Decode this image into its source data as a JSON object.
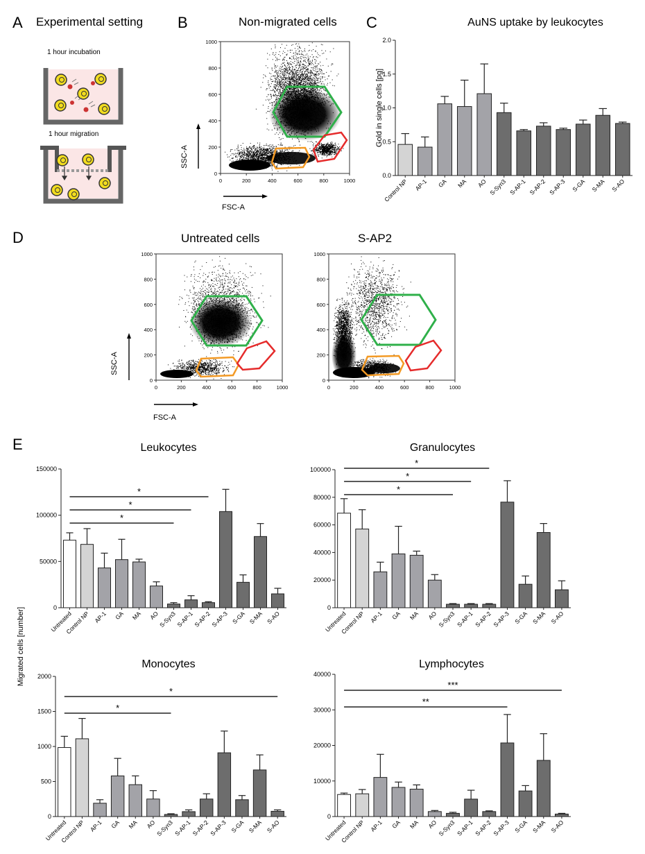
{
  "panels": {
    "A": {
      "letter": "A",
      "title": "Experimental setting",
      "step1": "1 hour incubation",
      "step2": "1 hour migration"
    },
    "B": {
      "letter": "B",
      "title": "Non-migrated cells",
      "xlabel": "FSC-A",
      "ylabel": "SSC-A",
      "ticks": [
        "0",
        "200",
        "400",
        "600",
        "800",
        "1000"
      ]
    },
    "C": {
      "letter": "C"
    },
    "D": {
      "letter": "D",
      "left_title": "Untreated cells",
      "right_title": "S-AP2",
      "xlabel": "FSC-A",
      "ylabel": "SSC-A",
      "ticks": [
        "0",
        "200",
        "400",
        "600",
        "800",
        "1000"
      ]
    },
    "E": {
      "letter": "E",
      "shared_ylabel": "Migrated cells [number]"
    }
  },
  "colors": {
    "gate_green": "#2fb04a",
    "gate_orange": "#f39a25",
    "gate_red": "#e52b2b",
    "bar_white": "#ffffff",
    "bar_light": "#d4d4d4",
    "bar_mid": "#a3a3a8",
    "bar_dark": "#6d6d6d"
  },
  "chart_data": [
    {
      "id": "C",
      "type": "bar",
      "title": "AuNS uptake by leukocytes",
      "ylabel": "Gold in single cells [pg]",
      "ylim": [
        0,
        2.0
      ],
      "yticks": [
        "0.0",
        "0.5",
        "1.0",
        "1.5",
        "2.0"
      ],
      "categories": [
        "Control NP",
        "AP-1",
        "GA",
        "MA",
        "AO",
        "S-Syn3",
        "S-AP-1",
        "S-AP-2",
        "S-AP-3",
        "S-GA",
        "S-MA",
        "S-AO"
      ],
      "values": [
        0.46,
        0.42,
        1.06,
        1.02,
        1.21,
        0.93,
        0.66,
        0.73,
        0.68,
        0.76,
        0.89,
        0.77
      ],
      "errors": [
        0.16,
        0.15,
        0.11,
        0.39,
        0.44,
        0.14,
        0.02,
        0.05,
        0.02,
        0.06,
        0.1,
        0.02
      ],
      "shades": [
        "light",
        "mid",
        "mid",
        "mid",
        "mid",
        "dark",
        "dark",
        "dark",
        "dark",
        "dark",
        "dark",
        "dark"
      ],
      "significance": []
    },
    {
      "id": "E-leukocytes",
      "type": "bar",
      "title": "Leukocytes",
      "ylim": [
        0,
        150000
      ],
      "yticks": [
        "0",
        "50000",
        "100000",
        "150000"
      ],
      "categories": [
        "Untreated",
        "Control NP",
        "AP-1",
        "GA",
        "MA",
        "AO",
        "S-Syn3",
        "S-AP-1",
        "S-AP-2",
        "S-AP-3",
        "S-GA",
        "S-MA",
        "S-AO"
      ],
      "values": [
        73000,
        68500,
        43000,
        52000,
        49500,
        23500,
        4000,
        8500,
        5500,
        104000,
        27500,
        77000,
        15000
      ],
      "errors": [
        8000,
        17000,
        16000,
        22000,
        3000,
        4500,
        1500,
        4500,
        1000,
        24000,
        8000,
        14000,
        6000
      ],
      "shades": [
        "white",
        "light",
        "mid",
        "mid",
        "mid",
        "mid",
        "dark",
        "dark",
        "dark",
        "dark",
        "dark",
        "dark",
        "dark"
      ],
      "significance": [
        {
          "from": 0,
          "to": 6,
          "label": "*"
        },
        {
          "from": 0,
          "to": 7,
          "label": "*"
        },
        {
          "from": 0,
          "to": 8,
          "label": "*"
        }
      ]
    },
    {
      "id": "E-granulocytes",
      "type": "bar",
      "title": "Granulocytes",
      "ylim": [
        0,
        100000
      ],
      "yticks": [
        "0",
        "20000",
        "40000",
        "60000",
        "80000",
        "100000"
      ],
      "categories": [
        "Untreated",
        "Control NP",
        "AP-1",
        "GA",
        "MA",
        "AO",
        "S-Syn3",
        "S-AP-1",
        "S-AP-2",
        "S-AP-3",
        "S-GA",
        "S-MA",
        "S-AO"
      ],
      "values": [
        68500,
        57000,
        26000,
        39000,
        38000,
        20000,
        2500,
        2500,
        2500,
        76500,
        17000,
        54500,
        13000
      ],
      "errors": [
        10500,
        14000,
        7000,
        20000,
        3000,
        4000,
        500,
        500,
        500,
        15500,
        6000,
        6500,
        6500
      ],
      "shades": [
        "white",
        "light",
        "mid",
        "mid",
        "mid",
        "mid",
        "dark",
        "dark",
        "dark",
        "dark",
        "dark",
        "dark",
        "dark"
      ],
      "significance": [
        {
          "from": 0,
          "to": 6,
          "label": "*"
        },
        {
          "from": 0,
          "to": 7,
          "label": "*"
        },
        {
          "from": 0,
          "to": 8,
          "label": "*"
        }
      ]
    },
    {
      "id": "E-monocytes",
      "type": "bar",
      "title": "Monocytes",
      "ylim": [
        0,
        2000
      ],
      "yticks": [
        "0",
        "500",
        "1000",
        "1500",
        "2000"
      ],
      "categories": [
        "Untreated",
        "Control NP",
        "AP-1",
        "GA",
        "MA",
        "AO",
        "S-Syn3",
        "S-AP-1",
        "S-AP-2",
        "S-AP-3",
        "S-GA",
        "S-MA",
        "S-AO"
      ],
      "values": [
        985,
        1110,
        190,
        580,
        455,
        250,
        30,
        70,
        250,
        910,
        240,
        665,
        75
      ],
      "errors": [
        160,
        290,
        50,
        250,
        125,
        120,
        10,
        25,
        75,
        310,
        60,
        215,
        20
      ],
      "shades": [
        "white",
        "light",
        "mid",
        "mid",
        "mid",
        "mid",
        "dark",
        "dark",
        "dark",
        "dark",
        "dark",
        "dark",
        "dark"
      ],
      "significance": [
        {
          "from": 0,
          "to": 6,
          "label": "*"
        },
        {
          "from": 0,
          "to": 12,
          "label": "*"
        }
      ]
    },
    {
      "id": "E-lymphocytes",
      "type": "bar",
      "title": "Lymphocytes",
      "ylim": [
        0,
        40000
      ],
      "yticks": [
        "0",
        "10000",
        "20000",
        "30000",
        "40000"
      ],
      "categories": [
        "Untreated",
        "Control NP",
        "AP-1",
        "GA",
        "MA",
        "AO",
        "S-Syn3",
        "S-AP-1",
        "S-AP-2",
        "S-AP-3",
        "S-GA",
        "S-MA",
        "S-AO"
      ],
      "values": [
        6200,
        6400,
        11000,
        8200,
        7700,
        1400,
        900,
        4900,
        1400,
        20700,
        7200,
        15800,
        700
      ],
      "errors": [
        400,
        1200,
        6500,
        1500,
        1200,
        300,
        300,
        2500,
        200,
        8000,
        1500,
        7500,
        200
      ],
      "shades": [
        "white",
        "light",
        "mid",
        "mid",
        "mid",
        "mid",
        "dark",
        "dark",
        "dark",
        "dark",
        "dark",
        "dark",
        "dark"
      ],
      "significance": [
        {
          "from": 0,
          "to": 9,
          "label": "**"
        },
        {
          "from": 0,
          "to": 12,
          "label": "***"
        }
      ]
    }
  ]
}
